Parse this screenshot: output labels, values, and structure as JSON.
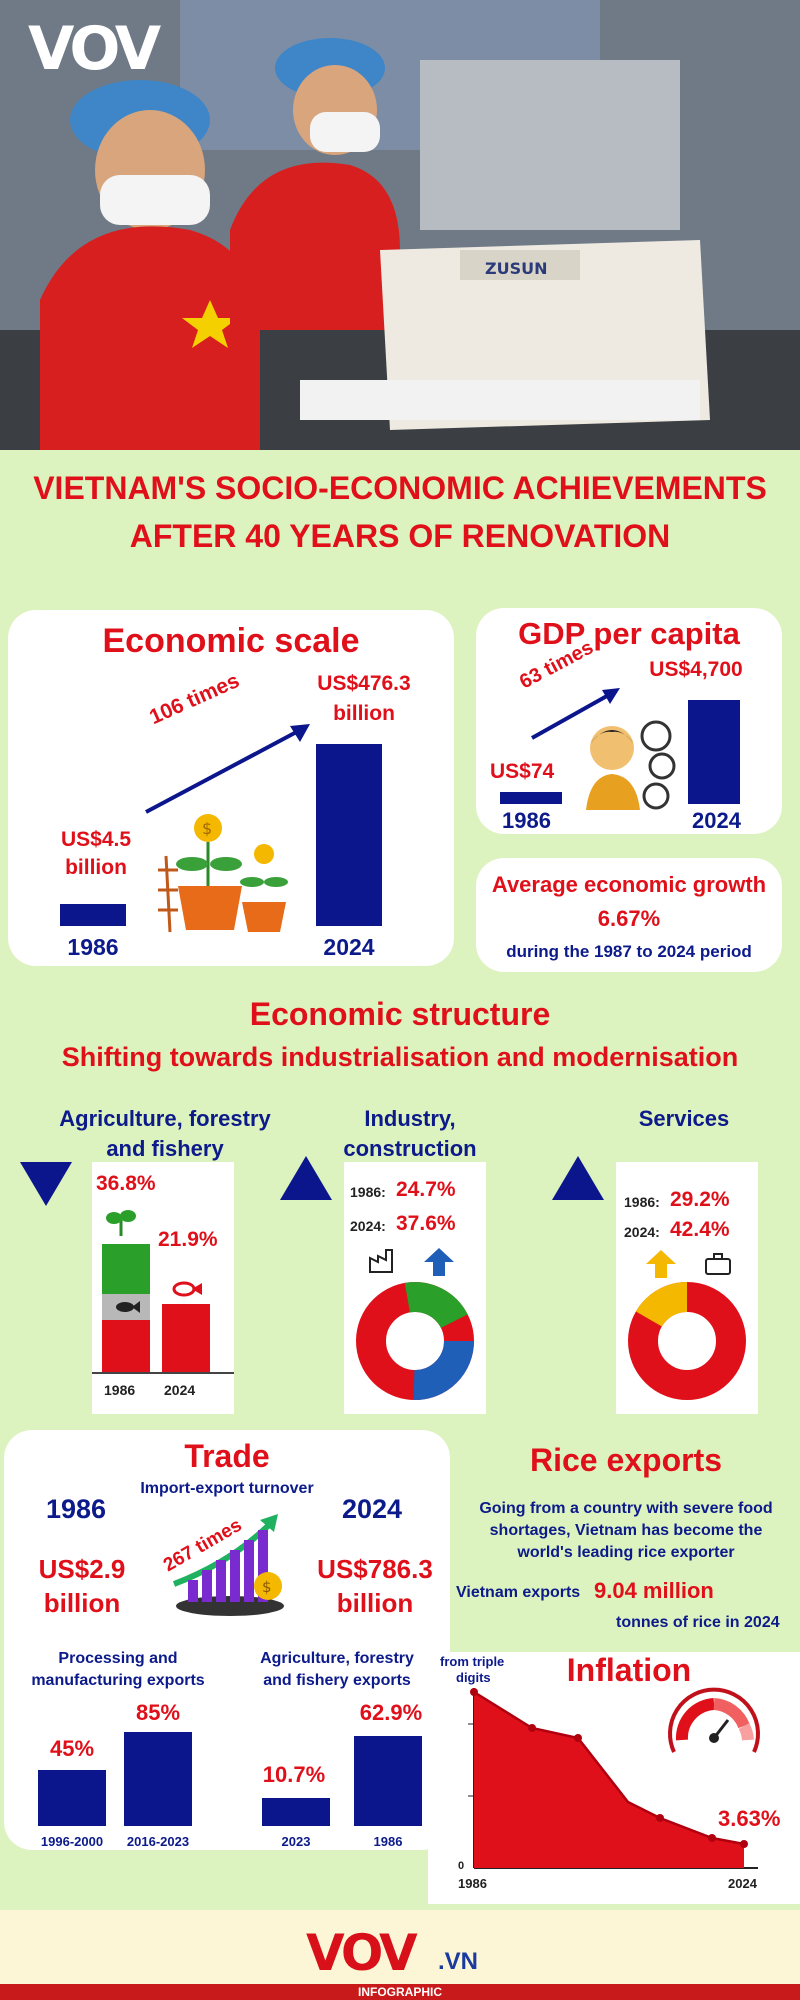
{
  "brand": {
    "logo": "VOV",
    "footer_logo_main": "VOV",
    "footer_logo_suffix": ".VN",
    "footer_tag": "INFOGRAPHIC"
  },
  "hero": {
    "machine_brand": "ZUSUN"
  },
  "title": {
    "line1": "VIETNAM'S SOCIO-ECONOMIC ACHIEVEMENTS",
    "line2": "AFTER 40 YEARS OF RENOVATION"
  },
  "economic_scale": {
    "heading": "Economic scale",
    "value_1986": "US$4.5",
    "unit_1986": "billion",
    "value_2024": "US$476.3",
    "unit_2024": "billion",
    "multiplier": "106 times",
    "year_1986": "1986",
    "year_2024": "2024"
  },
  "gdp_per_capita": {
    "heading": "GDP per capita",
    "value_1986": "US$74",
    "value_2024": "US$4,700",
    "multiplier": "63 times",
    "year_1986": "1986",
    "year_2024": "2024"
  },
  "growth": {
    "heading": "Average economic growth",
    "value": "6.67%",
    "period": "during the 1987 to 2024 period"
  },
  "structure": {
    "heading": "Economic structure",
    "subheading": "Shifting towards industrialisation and modernisation",
    "agriculture": {
      "label_line1": "Agriculture, forestry",
      "label_line2": "and fishery",
      "value_1986": "36.8%",
      "value_2024": "21.9%",
      "year_1986": "1986",
      "year_2024": "2024"
    },
    "industry": {
      "label_line1": "Industry,",
      "label_line2": "construction",
      "label_1986": "1986:",
      "value_1986": "24.7%",
      "label_2024": "2024:",
      "value_2024": "37.6%"
    },
    "services": {
      "label": "Services",
      "label_1986": "1986:",
      "value_1986": "29.2%",
      "label_2024": "2024:",
      "value_2024": "42.4%"
    }
  },
  "trade": {
    "heading": "Trade",
    "turnover_label": "Import-export turnover",
    "year_1986": "1986",
    "year_2024": "2024",
    "value_1986": "US$2.9",
    "unit_1986": "billion",
    "value_2024": "US$786.3",
    "unit_2024": "billion",
    "multiplier": "267 times",
    "processing": {
      "label_line1": "Processing and",
      "label_line2": "manufacturing exports",
      "value_a": "45%",
      "value_b": "85%",
      "period_a": "1996-2000",
      "period_b": "2016-2023"
    },
    "agri_exports": {
      "label_line1": "Agriculture, forestry",
      "label_line2": "and fishery exports",
      "value_a": "10.7%",
      "value_b": "62.9%",
      "period_a": "2023",
      "period_b": "1986"
    }
  },
  "rice": {
    "heading": "Rice exports",
    "desc_line1": "Going from a country with severe food",
    "desc_line2": "shortages, Vietnam has become the",
    "desc_line3": "world's leading rice exporter",
    "exports_label": "Vietnam exports",
    "exports_value": "9.04 million",
    "exports_unit": "tonnes of rice in 2024"
  },
  "inflation": {
    "heading": "Inflation",
    "start_label_line1": "from triple",
    "start_label_line2": "digits",
    "end_value": "3.63%",
    "zero_label": "0",
    "year_start": "1986",
    "year_end": "2024"
  },
  "colors": {
    "red": "#e0101a",
    "navy": "#0c168c",
    "green": "#2aa02a",
    "yellow": "#f5b800",
    "background": "#ddf3bf"
  },
  "icons": [
    "vov-logo",
    "dollar-plant-icon",
    "person-analytics-icon",
    "factory-icon",
    "arrow-up-icon",
    "briefcase-icon",
    "fish-icon",
    "sprout-icon",
    "growth-bars-icon",
    "gauge-icon"
  ]
}
